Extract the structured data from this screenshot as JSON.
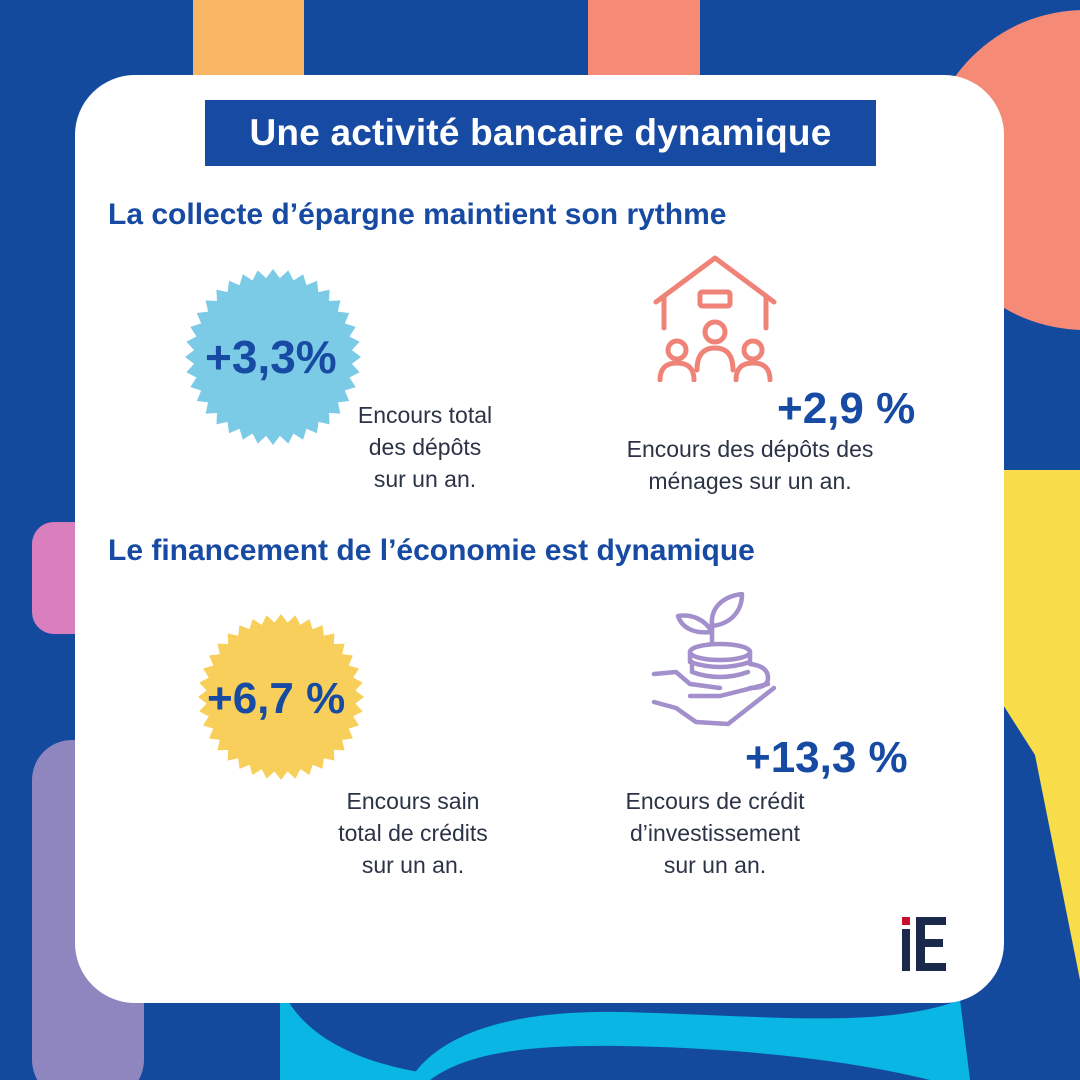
{
  "title": "Une activité bancaire dynamique",
  "sections": [
    {
      "heading": "La collecte d’épargne maintient son rythme",
      "stats": [
        {
          "value": "+3,3%",
          "description": [
            "Encours total",
            "des dépôts",
            "sur un an."
          ]
        },
        {
          "value": "+2,9 %",
          "description": [
            "Encours des dépôts des",
            "ménages sur un an."
          ]
        }
      ]
    },
    {
      "heading": "Le financement de l’économie est dynamique",
      "stats": [
        {
          "value": "+6,7 %",
          "description": [
            "Encours sain",
            "total de crédits",
            "sur un an."
          ]
        },
        {
          "value": "+13,3 %",
          "description": [
            "Encours de crédit",
            "d’investissement",
            "sur un an."
          ]
        }
      ]
    }
  ],
  "logo_text": "iE",
  "icons": [
    "house-family-icon",
    "plant-coins-hand-icon"
  ],
  "colors": {
    "background": "#144a9e",
    "card": "#ffffff",
    "title_box": "#174aa2",
    "text_blue": "#174aa2",
    "badge_blue": "#7ccbe6",
    "badge_yellow": "#f7cf5a",
    "icon_coral": "#ef8377",
    "icon_purple": "#a28fcb",
    "logo_red": "#c8102e",
    "logo_navy": "#1b2a4a"
  }
}
